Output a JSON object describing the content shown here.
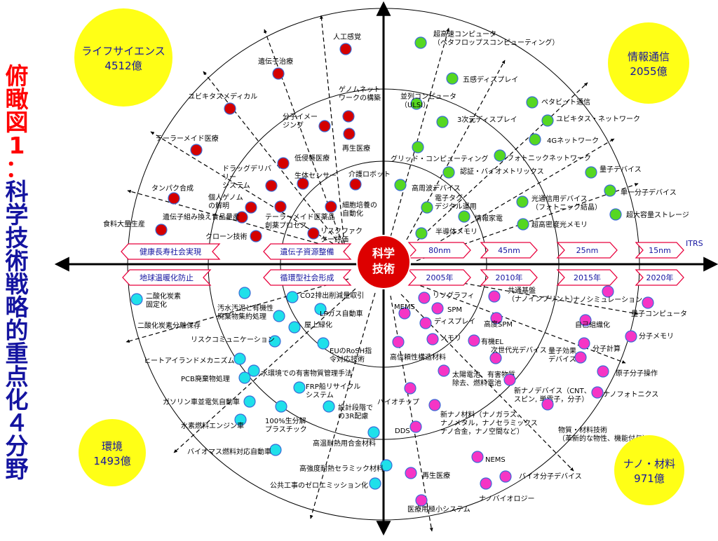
{
  "title": {
    "line1": [
      "俯",
      "瞰",
      "図",
      "1",
      "："
    ],
    "line2": [
      "科",
      "学",
      "技",
      "術",
      "戦",
      "略",
      "的",
      "重",
      "点",
      "化",
      "４",
      "分",
      "野"
    ]
  },
  "center": {
    "line1": "科学",
    "line2": "技術"
  },
  "colors": {
    "life": "#d40000",
    "info": "#55d722",
    "env": "#1fe0ea",
    "nano": "#f535c5",
    "sector": "#ffff16",
    "arrow": "#e8003c",
    "badge": "#dd0000"
  },
  "sectors": {
    "life": {
      "name": "ライフサイエンス",
      "value": "4512億"
    },
    "info": {
      "name": "情報通信",
      "value": "2055億"
    },
    "env": {
      "name": "環境",
      "value": "1493億"
    },
    "nano": {
      "name": "ナノ・材料",
      "value": "971億"
    }
  },
  "banners": {
    "left_top": [
      "健康長寿社会実現",
      "遺伝子資源整備"
    ],
    "left_bottom": [
      "地球温暖化防止",
      "循環型社会形成"
    ],
    "right_top": [
      "80nm",
      "45nm",
      "25nm",
      "15nm"
    ],
    "right_bottom": [
      "2005年",
      "2010年",
      "2015年",
      "2020年"
    ],
    "itrs": "ITRS"
  },
  "life": [
    {
      "label": "人工感覚"
    },
    {
      "label": "遺伝子治療"
    },
    {
      "label": "ゲノムネット\nワークの構築"
    },
    {
      "label": "ユビキタスメディカル"
    },
    {
      "label": "分子イメー\nジング"
    },
    {
      "label": "再生医療"
    },
    {
      "label": "テーラーメイド医療"
    },
    {
      "label": "低侵襲医療"
    },
    {
      "label": "ドラッグデリバ\nリー\nシステム"
    },
    {
      "label": "生体センサー"
    },
    {
      "label": "介護ロボット"
    },
    {
      "label": "タンパク合成"
    },
    {
      "label": "個人ゲノム\nの解明"
    },
    {
      "label": "細胞培養の\n自動化"
    },
    {
      "label": "遺伝子組み換え食品量産"
    },
    {
      "label": "テーラーメイド医薬品\n創薬プロセス"
    },
    {
      "label": "食料大量生産"
    },
    {
      "label": "クローン技術"
    },
    {
      "label": "リスクファク\nター評価"
    }
  ],
  "info": [
    {
      "label": "超高速コンピュータ\n（ペタフロップスコンピューティング）"
    },
    {
      "label": "五感ディスプレイ"
    },
    {
      "label": "並列コンピュータ\n（ULSI）"
    },
    {
      "label": "3次元ディスプレイ"
    },
    {
      "label": "ペタビット通信"
    },
    {
      "label": "ユビキタス・ネットワーク"
    },
    {
      "label": "4Gネットワーク"
    },
    {
      "label": "グリッド・コンピューティング"
    },
    {
      "label": "フォトニックネットワーク"
    },
    {
      "label": "認証・バイオメトリックス"
    },
    {
      "label": "量子デバイス"
    },
    {
      "label": "高周波デバイス"
    },
    {
      "label": "単一分子デバイス"
    },
    {
      "label": "電子タグ\nデジタル運用"
    },
    {
      "label": "光通信用デバイス\n（フォトニック結晶）"
    },
    {
      "label": "超大容量ストレージ"
    },
    {
      "label": "情報家電"
    },
    {
      "label": "超高密度光メモリ"
    },
    {
      "label": "半導体メモリ"
    }
  ],
  "env": [
    {
      "label": "CO2排出削減量取引"
    },
    {
      "label": "二酸化炭素\n固定化"
    },
    {
      "label": "汚水汚泥と有機性\n廃棄物集約処理"
    },
    {
      "label": "LPガス自動車"
    },
    {
      "label": "二酸化炭素分離保存"
    },
    {
      "label": "屋上緑化"
    },
    {
      "label": "リスクコミュニケーション"
    },
    {
      "label": "EUのRoSH指\n令対応技術"
    },
    {
      "label": "ヒートアイランドメカニズム"
    },
    {
      "label": "水環境での有害物質管理手法"
    },
    {
      "label": "PCB廃棄物処理"
    },
    {
      "label": "FRP船リサイクル\nシステム"
    },
    {
      "label": "ガソリン車並電気自動車"
    },
    {
      "label": "100%生分解\nプラスチック"
    },
    {
      "label": "設計段階で\nの3R配慮"
    },
    {
      "label": "水素燃料エンジン車"
    },
    {
      "label": "高温耐熱用合金材料"
    },
    {
      "label": "バイオマス燃料対応自動車"
    },
    {
      "label": "高強度耐熱セラミック材料"
    },
    {
      "label": "公共工事のゼロエミッション化"
    }
  ],
  "nano": [
    {
      "label": "リソグラフィ"
    },
    {
      "label": "共通基盤\n（ナノインプリント）"
    },
    {
      "label": "ナノシミュレーション"
    },
    {
      "label": "MEMS"
    },
    {
      "label": "SPM"
    },
    {
      "label": "量子コンピュータ"
    },
    {
      "label": "ディスプレイ"
    },
    {
      "label": "高度SPM"
    },
    {
      "label": "自己組織化"
    },
    {
      "label": "メモリ"
    },
    {
      "label": "有機EL"
    },
    {
      "label": "分子メモリ"
    },
    {
      "label": "次世代光デバイス"
    },
    {
      "label": "量子効果\nデバイス"
    },
    {
      "label": "分子計算"
    },
    {
      "label": "高信頼性構造材料"
    },
    {
      "label": "太陽電池、有害物質\n除去、燃料電池"
    },
    {
      "label": "原子分子操作"
    },
    {
      "label": "新ナノデバイス（CNT、\nスピン, 単電子，分子）"
    },
    {
      "label": "ナノフォトニクス"
    },
    {
      "label": "バイオチップ"
    },
    {
      "label": "新ナノ材料（ナノガラス、\nナノメタル，ナノセラミックス\nナノ合金，ナノ空間など）"
    },
    {
      "label": "DDS"
    },
    {
      "label": "物質・材料技術\n（革新的な物性、機能付与）"
    },
    {
      "label": "NEMS"
    },
    {
      "label": "再生医療"
    },
    {
      "label": "バイオ分子デバイス"
    },
    {
      "label": "ナノバイオロジー"
    },
    {
      "label": "医療用極小システム"
    }
  ]
}
